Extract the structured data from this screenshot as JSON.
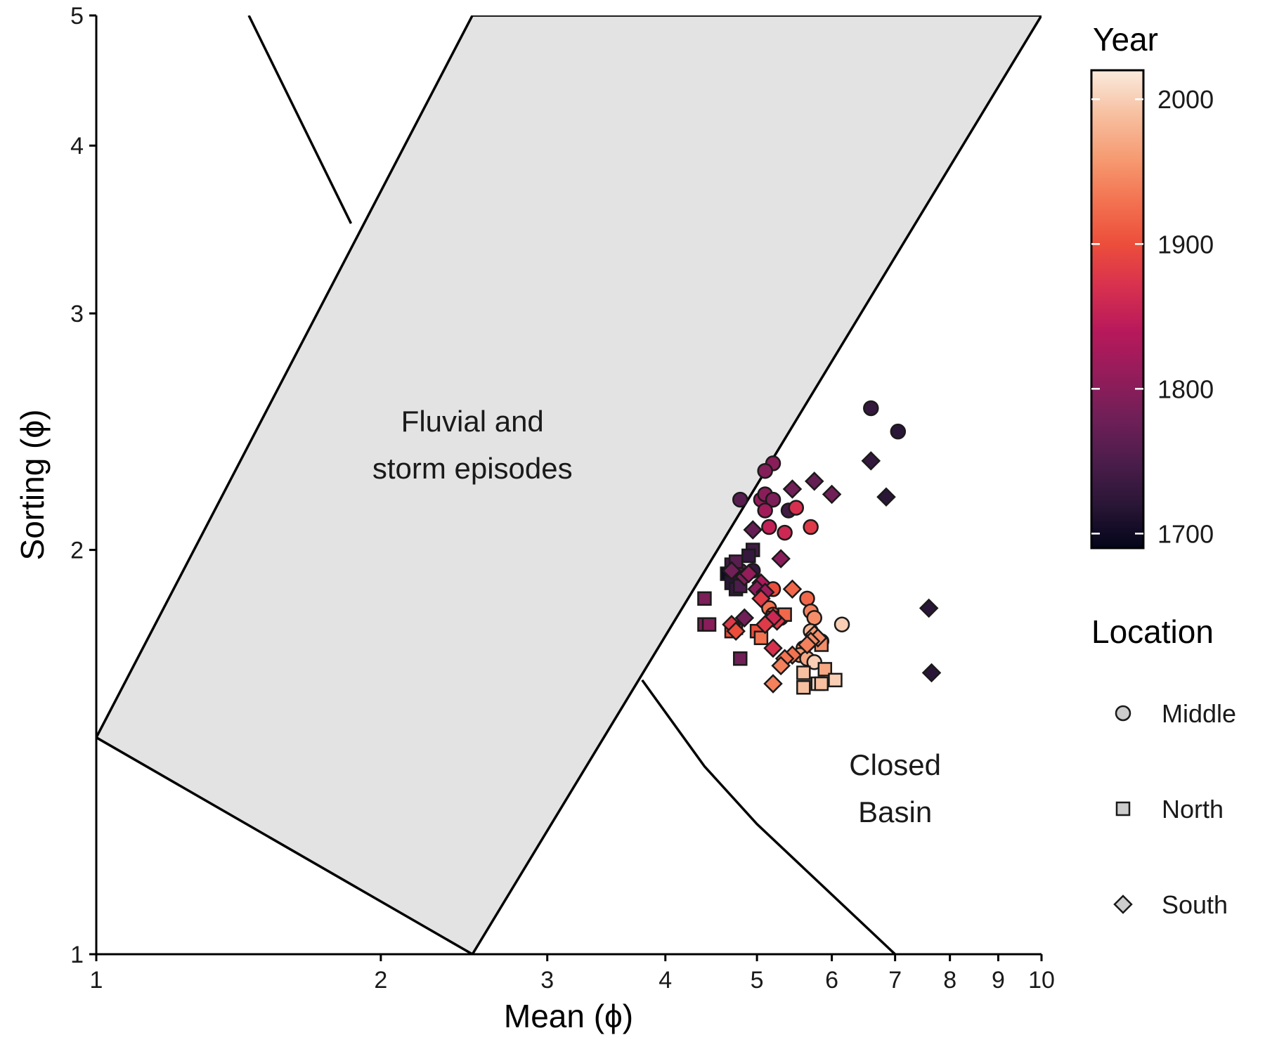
{
  "chart_data": {
    "type": "scatter",
    "title": "",
    "xlabel": "Mean (ϕ)",
    "ylabel": "Sorting (ϕ)",
    "x_scale": "log",
    "y_scale": "log",
    "xlim": [
      1,
      10
    ],
    "ylim": [
      1,
      5
    ],
    "x_ticks": [
      1,
      2,
      3,
      4,
      5,
      6,
      7,
      8,
      9,
      10
    ],
    "y_ticks": [
      1,
      2,
      3,
      4,
      5
    ],
    "grid": false,
    "regions": [
      {
        "label": [
          "Fluvial and",
          "storm episodes"
        ],
        "fill": "#e3e3e3",
        "polygon": [
          [
            1,
            1.45
          ],
          [
            2.5,
            5
          ],
          [
            10,
            5
          ],
          [
            2.5,
            1
          ]
        ],
        "label_pos": [
          2.5,
          2.45
        ]
      },
      {
        "label": [
          "Closed",
          "Basin"
        ],
        "fill": "none",
        "label_pos": [
          7.0,
          1.36
        ]
      }
    ],
    "lines": [
      [
        [
          1.45,
          5
        ],
        [
          1.86,
          3.5
        ]
      ],
      [
        [
          3.78,
          1.6
        ],
        [
          4.4,
          1.38
        ],
        [
          5.0,
          1.25
        ],
        [
          7.0,
          1
        ]
      ]
    ],
    "colorbar": {
      "title": "Year",
      "min": 1690,
      "max": 2020,
      "ticks": [
        1700,
        1800,
        1900,
        2000
      ],
      "colors": [
        "#03051a",
        "#2a1636",
        "#4c1d4b",
        "#701f57",
        "#951c5b",
        "#b8195b",
        "#d7304f",
        "#ec4e3b",
        "#f37351",
        "#f69c73",
        "#f7c0a1",
        "#faebdd"
      ]
    },
    "shape_legend": {
      "title": "Location",
      "items": [
        {
          "label": "Middle",
          "shape": "circle"
        },
        {
          "label": "North",
          "shape": "square"
        },
        {
          "label": "South",
          "shape": "diamond"
        }
      ]
    },
    "series": [
      {
        "name": "Middle",
        "shape": "circle",
        "points": [
          [
            6.6,
            2.55,
            1730
          ],
          [
            7.05,
            2.45,
            1720
          ],
          [
            5.2,
            2.32,
            1800
          ],
          [
            5.1,
            2.29,
            1795
          ],
          [
            4.8,
            2.18,
            1760
          ],
          [
            5.05,
            2.18,
            1810
          ],
          [
            5.1,
            2.2,
            1800
          ],
          [
            5.2,
            2.18,
            1790
          ],
          [
            5.1,
            2.14,
            1820
          ],
          [
            5.4,
            2.14,
            1740
          ],
          [
            5.5,
            2.15,
            1870
          ],
          [
            5.15,
            2.08,
            1850
          ],
          [
            5.35,
            2.06,
            1860
          ],
          [
            5.7,
            2.08,
            1880
          ],
          [
            4.95,
            1.93,
            1730
          ],
          [
            4.8,
            1.93,
            1770
          ],
          [
            5.2,
            1.87,
            1900
          ],
          [
            5.65,
            1.84,
            1920
          ],
          [
            5.15,
            1.81,
            1930
          ],
          [
            5.7,
            1.8,
            1940
          ],
          [
            5.75,
            1.78,
            1950
          ],
          [
            5.2,
            1.79,
            1910
          ],
          [
            5.3,
            1.78,
            1940
          ],
          [
            6.15,
            1.76,
            2000
          ],
          [
            5.7,
            1.74,
            1980
          ],
          [
            5.75,
            1.72,
            1990
          ],
          [
            5.85,
            1.71,
            1980
          ],
          [
            5.6,
            1.69,
            1960
          ],
          [
            5.55,
            1.67,
            1960
          ],
          [
            5.65,
            1.66,
            1970
          ],
          [
            5.75,
            1.65,
            2000
          ]
        ]
      },
      {
        "name": "North",
        "shape": "square",
        "points": [
          [
            4.95,
            2.0,
            1740
          ],
          [
            4.9,
            1.98,
            1730
          ],
          [
            4.65,
            1.92,
            1700
          ],
          [
            4.7,
            1.95,
            1740
          ],
          [
            4.75,
            1.96,
            1760
          ],
          [
            4.7,
            1.89,
            1720
          ],
          [
            4.75,
            1.87,
            1730
          ],
          [
            4.8,
            1.88,
            1750
          ],
          [
            4.4,
            1.84,
            1790
          ],
          [
            4.4,
            1.76,
            1790
          ],
          [
            4.45,
            1.76,
            1800
          ],
          [
            4.75,
            1.75,
            1820
          ],
          [
            4.7,
            1.74,
            1900
          ],
          [
            5.0,
            1.74,
            1900
          ],
          [
            5.2,
            1.78,
            1880
          ],
          [
            5.35,
            1.79,
            1920
          ],
          [
            5.05,
            1.72,
            1930
          ],
          [
            5.85,
            1.7,
            1950
          ],
          [
            4.8,
            1.66,
            1780
          ],
          [
            5.9,
            1.63,
            1970
          ],
          [
            5.6,
            1.62,
            1990
          ],
          [
            6.05,
            1.6,
            2000
          ],
          [
            5.8,
            1.59,
            2010
          ],
          [
            5.85,
            1.59,
            1990
          ],
          [
            5.6,
            1.58,
            1990
          ]
        ]
      },
      {
        "name": "South",
        "shape": "diamond",
        "points": [
          [
            6.6,
            2.33,
            1730
          ],
          [
            5.75,
            2.25,
            1770
          ],
          [
            5.45,
            2.22,
            1780
          ],
          [
            6.0,
            2.2,
            1780
          ],
          [
            6.85,
            2.19,
            1720
          ],
          [
            4.95,
            2.07,
            1770
          ],
          [
            5.3,
            1.97,
            1800
          ],
          [
            4.7,
            1.93,
            1780
          ],
          [
            4.85,
            1.91,
            1790
          ],
          [
            4.9,
            1.92,
            1810
          ],
          [
            5.05,
            1.89,
            1830
          ],
          [
            5.0,
            1.87,
            1800
          ],
          [
            5.1,
            1.86,
            1820
          ],
          [
            5.45,
            1.87,
            1920
          ],
          [
            5.05,
            1.84,
            1880
          ],
          [
            7.6,
            1.81,
            1720
          ],
          [
            4.85,
            1.78,
            1780
          ],
          [
            5.25,
            1.77,
            1880
          ],
          [
            5.2,
            1.78,
            1860
          ],
          [
            5.1,
            1.76,
            1880
          ],
          [
            4.7,
            1.76,
            1880
          ],
          [
            4.75,
            1.74,
            1900
          ],
          [
            5.75,
            1.73,
            1960
          ],
          [
            5.8,
            1.72,
            1950
          ],
          [
            5.7,
            1.71,
            1950
          ],
          [
            5.65,
            1.7,
            1940
          ],
          [
            5.2,
            1.69,
            1870
          ],
          [
            5.45,
            1.67,
            1930
          ],
          [
            5.35,
            1.66,
            1930
          ],
          [
            5.3,
            1.64,
            1940
          ],
          [
            7.65,
            1.62,
            1720
          ],
          [
            5.2,
            1.59,
            1940
          ]
        ]
      }
    ]
  }
}
